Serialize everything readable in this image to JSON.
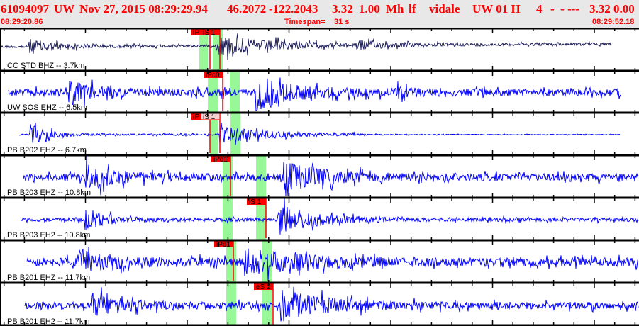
{
  "header": {
    "event_id": "61094097",
    "network": "UW",
    "origin_datetime": "Nov 27, 2015 08:29:29.94",
    "latitude": "46.2072",
    "longitude": "-122.2043",
    "depth": "3.32",
    "magnitude": "1.00",
    "mag_type": "Mh",
    "event_type": "lf",
    "analyst": "vidale",
    "source": "UW 01 H",
    "count": "4",
    "extra": "-  - ---",
    "trailing": "3.32 0.00",
    "start_time": "08:29:20.86",
    "timespan_label": "Timespan=",
    "timespan_value": "31 s",
    "end_time": "08:29:52.18"
  },
  "colors": {
    "header_text": "#ff0000",
    "trace_first": "#1c1c5c",
    "trace": "#0000ff",
    "pick_line": "#ff0000",
    "pick_window": "#98f898"
  },
  "channels": [
    {
      "label": "CC STD BHZ -- 3.7km",
      "picks": [
        {
          "text": "iP"
        },
        {
          "text": "iS 1"
        }
      ]
    },
    {
      "label": "UW SOS EHZ -- 6.5km",
      "picks": [
        {
          "text": "iPc0"
        }
      ]
    },
    {
      "label": "PB B202 EHZ -- 6.7km",
      "picks": [
        {
          "text": "iP"
        },
        {
          "text": "iS 1"
        }
      ]
    },
    {
      "label": "PB B203 EHZ -- 10.8km",
      "picks": [
        {
          "text": "iPd1"
        }
      ]
    },
    {
      "label": "PB B203 EH2 -- 10.8km",
      "picks": [
        {
          "text": "iS 1"
        }
      ]
    },
    {
      "label": "PB B201 EHZ -- 11.7km",
      "picks": [
        {
          "text": "iPd1"
        }
      ]
    },
    {
      "label": "PB B201 EH2 -- 11.7km",
      "picks": [
        {
          "text": "eS 2"
        }
      ]
    }
  ]
}
